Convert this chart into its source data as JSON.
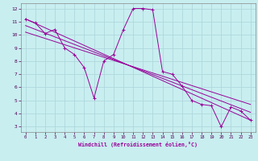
{
  "title": "",
  "xlabel": "Windchill (Refroidissement éolien,°C)",
  "bg_color": "#c8eef0",
  "grid_color": "#b0d8dc",
  "line_color": "#990099",
  "spine_color": "#888888",
  "tick_color": "#550055",
  "xlim": [
    -0.5,
    23.5
  ],
  "ylim": [
    2.6,
    12.4
  ],
  "x_ticks": [
    0,
    1,
    2,
    3,
    4,
    5,
    6,
    7,
    8,
    9,
    10,
    11,
    12,
    13,
    14,
    15,
    16,
    17,
    18,
    19,
    20,
    21,
    22,
    23
  ],
  "y_ticks": [
    3,
    4,
    5,
    6,
    7,
    8,
    9,
    10,
    11,
    12
  ],
  "main_line_x": [
    0,
    1,
    2,
    3,
    4,
    5,
    6,
    7,
    8,
    9,
    10,
    11,
    12,
    13,
    14,
    15,
    16,
    17,
    18,
    19,
    20,
    21,
    22,
    23
  ],
  "main_line_y": [
    11.2,
    10.9,
    10.1,
    10.4,
    9.0,
    8.5,
    7.5,
    5.2,
    8.0,
    8.5,
    10.4,
    12.0,
    12.0,
    11.9,
    7.2,
    7.0,
    6.1,
    5.0,
    4.7,
    4.6,
    3.0,
    4.5,
    4.2,
    3.5
  ],
  "diag_lines": [
    {
      "x": [
        0,
        23
      ],
      "y": [
        11.2,
        3.5
      ]
    },
    {
      "x": [
        0,
        23
      ],
      "y": [
        10.7,
        4.1
      ]
    },
    {
      "x": [
        0,
        23
      ],
      "y": [
        10.2,
        4.7
      ]
    }
  ]
}
